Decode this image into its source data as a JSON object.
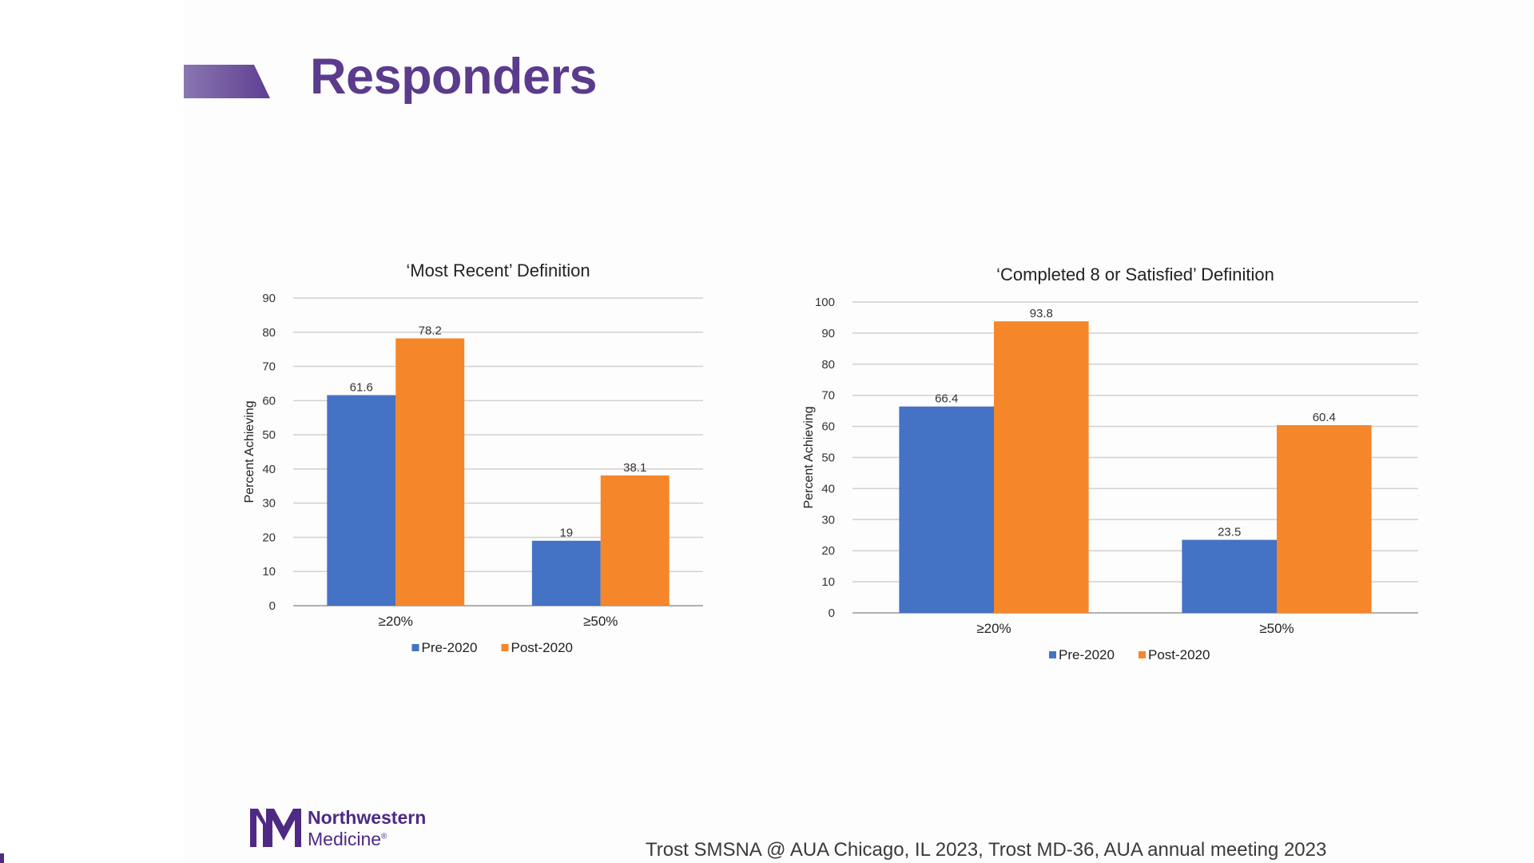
{
  "slide": {
    "title": "Responders",
    "citation": "Trost SMSNA @ AUA Chicago, IL 2023, Trost MD-36, AUA annual meeting 2023",
    "logo": {
      "line1": "Northwestern",
      "line2": "Medicine",
      "mark": "®"
    }
  },
  "colors": {
    "pre": "#4472c4",
    "post": "#f5862a",
    "title": "#5b3b8c",
    "brand": "#4e2a84"
  },
  "chart_data": [
    {
      "type": "bar",
      "title": "‘Most Recent’ Definition",
      "ylabel": "Percent Achieving",
      "xlabel": "",
      "categories": [
        "≥20%",
        "≥50%"
      ],
      "series": [
        {
          "name": "Pre-2020",
          "values": [
            61.6,
            19
          ]
        },
        {
          "name": "Post-2020",
          "values": [
            78.2,
            38.1
          ]
        }
      ],
      "value_labels": [
        [
          "61.6",
          "19"
        ],
        [
          "78.2",
          "38.1"
        ]
      ],
      "ylim": [
        0,
        90
      ],
      "yticks": [
        0,
        10,
        20,
        30,
        40,
        50,
        60,
        70,
        80,
        90
      ],
      "grid": true,
      "legend": "bottom"
    },
    {
      "type": "bar",
      "title": "‘Completed 8 or Satisfied’ Definition",
      "ylabel": "Percent Achieving",
      "xlabel": "",
      "categories": [
        "≥20%",
        "≥50%"
      ],
      "series": [
        {
          "name": "Pre-2020",
          "values": [
            66.4,
            23.5
          ]
        },
        {
          "name": "Post-2020",
          "values": [
            93.8,
            60.4
          ]
        }
      ],
      "value_labels": [
        [
          "66.4",
          "23.5"
        ],
        [
          "93.8",
          "60.4"
        ]
      ],
      "ylim": [
        0,
        100
      ],
      "yticks": [
        0,
        10,
        20,
        30,
        40,
        50,
        60,
        70,
        80,
        90,
        100
      ],
      "grid": true,
      "legend": "bottom"
    }
  ]
}
